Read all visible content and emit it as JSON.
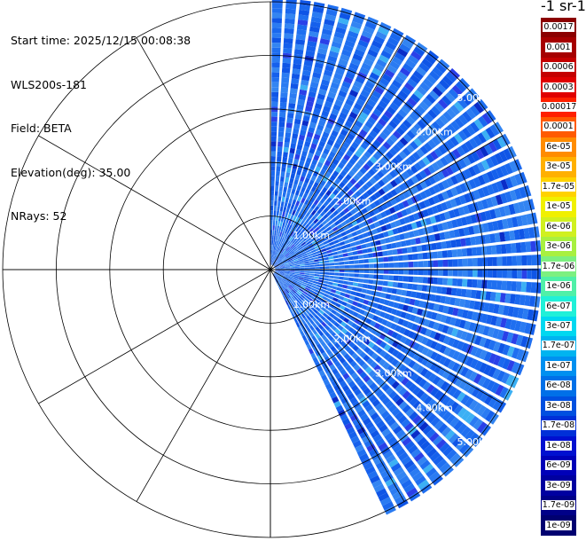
{
  "info": {
    "start_time": "Start time: 2025/12/15 00:08:38",
    "instrument": "WLS200s-181",
    "field": "Field: BETA",
    "elevation": "Elevation(deg): 35.00",
    "nrays": "NRays: 52"
  },
  "colorbar": {
    "title": "-1 sr-1",
    "labels": [
      "0.0017",
      "0.001",
      "0.0006",
      "0.0003",
      "0.00017",
      "0.0001",
      "6e-05",
      "3e-05",
      "1.7e-05",
      "1e-05",
      "6e-06",
      "3e-06",
      "1.7e-06",
      "1e-06",
      "6e-07",
      "3e-07",
      "1.7e-07",
      "1e-07",
      "6e-08",
      "3e-08",
      "1.7e-08",
      "1e-08",
      "6e-09",
      "3e-09",
      "1.7e-09",
      "1e-09"
    ],
    "colors": [
      "#8b0000",
      "#a60000",
      "#c40000",
      "#e00000",
      "#ff2000",
      "#ff5a00",
      "#ff8c00",
      "#ffb000",
      "#ffd200",
      "#f0f000",
      "#d0f020",
      "#a8f040",
      "#7cf080",
      "#50f0a8",
      "#20f0d8",
      "#00d8f0",
      "#00b4f0",
      "#0090f0",
      "#0070e8",
      "#0050e0",
      "#0030d8",
      "#0010d0",
      "#0000b8",
      "#0000a0",
      "#000088",
      "#000070"
    ]
  },
  "chart_data": {
    "type": "heatmap",
    "projection": "polar PPI",
    "field": "BETA",
    "elevation_deg": 35.0,
    "nrays": 52,
    "azimuth_range_deg": [
      0,
      155
    ],
    "range_rings_km": [
      1,
      2,
      3,
      4,
      5
    ],
    "range_max_km": 5.0,
    "ring_labels": [
      "1.00km",
      "2.00km",
      "3.00km",
      "4.00km",
      "5.00km"
    ],
    "dominant_value": "1e-08 – 3e-08",
    "grid": true
  }
}
